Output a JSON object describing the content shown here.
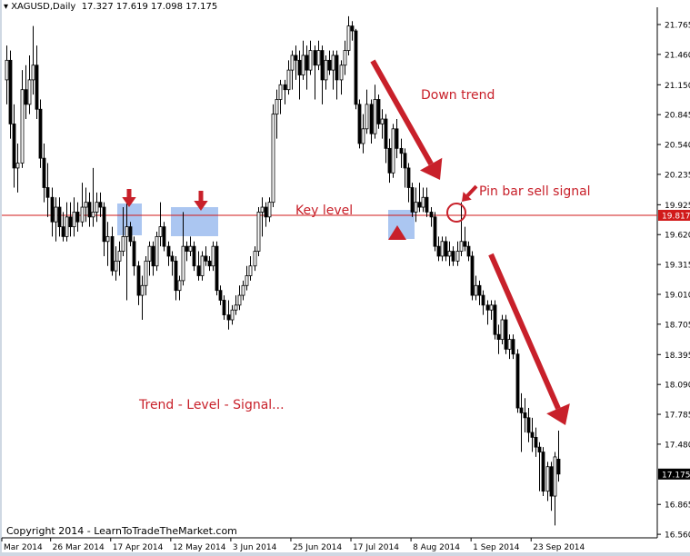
{
  "header": {
    "symbol": "XAGUSD,Daily",
    "ohlc": "17.327 17.619 17.098 17.175"
  },
  "chart_data": {
    "type": "candlestick",
    "symbol": "XAGUSD",
    "timeframe": "Daily",
    "ylim": [
      16.56,
      21.765
    ],
    "y_ticks": [
      21.765,
      21.46,
      21.15,
      20.845,
      20.54,
      20.235,
      19.925,
      19.62,
      19.315,
      19.01,
      18.705,
      18.395,
      18.09,
      17.785,
      17.48,
      16.865,
      16.56
    ],
    "x_tick_labels": [
      "Mar 2014",
      "26 Mar 2014",
      "17 Apr 2014",
      "12 May 2014",
      "3 Jun 2014",
      "25 Jun 2014",
      "17 Jul 2014",
      "8 Aug 2014",
      "1 Sep 2014",
      "23 Sep 2014"
    ],
    "x_tick_bar_index": [
      0,
      13,
      29,
      45,
      61,
      77,
      93,
      109,
      125,
      141
    ],
    "current_price": {
      "value": "17.175",
      "color": "#000000"
    },
    "key_level": {
      "value": "19.817",
      "color": "#d11a1a",
      "label": "Key level"
    },
    "annotations": {
      "down_trend": "Down trend",
      "pin_bar": "Pin bar sell signal",
      "summary": "Trend - Level - Signal...",
      "copyright": "Copyright 2014 - LearnToTradeTheMarket.com"
    },
    "colors": {
      "annotation": "#c8202a",
      "highlight_box": "#8fb3ec",
      "bull_body": "#ffffff",
      "bear_body": "#000000"
    },
    "candles_ohlc": [
      [
        21.2,
        21.55,
        20.95,
        21.4
      ],
      [
        21.4,
        21.5,
        20.6,
        20.75
      ],
      [
        20.75,
        20.95,
        20.1,
        20.3
      ],
      [
        20.3,
        20.55,
        20.05,
        20.35
      ],
      [
        20.35,
        21.3,
        20.3,
        21.1
      ],
      [
        21.1,
        21.35,
        20.8,
        20.95
      ],
      [
        20.95,
        21.45,
        20.85,
        21.2
      ],
      [
        21.2,
        21.75,
        21.05,
        21.35
      ],
      [
        21.35,
        21.55,
        20.8,
        20.9
      ],
      [
        20.9,
        21.0,
        20.3,
        20.4
      ],
      [
        20.4,
        20.55,
        19.95,
        20.1
      ],
      [
        20.1,
        20.35,
        19.8,
        20.0
      ],
      [
        20.0,
        20.1,
        19.6,
        19.75
      ],
      [
        19.75,
        20.0,
        19.55,
        19.9
      ],
      [
        19.9,
        20.0,
        19.6,
        19.7
      ],
      [
        19.7,
        19.85,
        19.55,
        19.6
      ],
      [
        19.6,
        19.95,
        19.55,
        19.8
      ],
      [
        19.8,
        19.95,
        19.6,
        19.7
      ],
      [
        19.7,
        20.0,
        19.6,
        19.85
      ],
      [
        19.85,
        19.95,
        19.65,
        19.75
      ],
      [
        19.75,
        20.15,
        19.7,
        19.9
      ],
      [
        19.9,
        20.1,
        19.75,
        19.95
      ],
      [
        19.95,
        20.05,
        19.7,
        19.8
      ],
      [
        19.8,
        20.3,
        19.7,
        19.85
      ],
      [
        19.85,
        20.05,
        19.75,
        19.95
      ],
      [
        19.95,
        20.05,
        19.8,
        19.9
      ],
      [
        19.9,
        19.95,
        19.4,
        19.55
      ],
      [
        19.55,
        19.75,
        19.3,
        19.6
      ],
      [
        19.6,
        19.7,
        19.2,
        19.25
      ],
      [
        19.25,
        19.5,
        19.15,
        19.35
      ],
      [
        19.35,
        19.55,
        19.2,
        19.45
      ],
      [
        19.45,
        19.9,
        19.4,
        19.6
      ],
      [
        19.6,
        19.95,
        18.95,
        19.7
      ],
      [
        19.7,
        19.75,
        19.5,
        19.55
      ],
      [
        19.55,
        19.6,
        19.2,
        19.3
      ],
      [
        19.3,
        19.35,
        18.9,
        19.0
      ],
      [
        19.0,
        19.2,
        18.75,
        19.1
      ],
      [
        19.1,
        19.4,
        19.0,
        19.35
      ],
      [
        19.35,
        19.55,
        19.2,
        19.5
      ],
      [
        19.5,
        19.55,
        19.2,
        19.3
      ],
      [
        19.3,
        19.65,
        19.25,
        19.6
      ],
      [
        19.6,
        19.95,
        19.5,
        19.7
      ],
      [
        19.7,
        19.75,
        19.45,
        19.5
      ],
      [
        19.5,
        19.55,
        19.3,
        19.4
      ],
      [
        19.4,
        19.45,
        19.2,
        19.35
      ],
      [
        19.35,
        19.4,
        18.95,
        19.05
      ],
      [
        19.05,
        19.2,
        18.95,
        19.15
      ],
      [
        19.15,
        19.85,
        19.1,
        19.5
      ],
      [
        19.5,
        19.55,
        19.35,
        19.45
      ],
      [
        19.45,
        19.6,
        19.4,
        19.5
      ],
      [
        19.5,
        19.55,
        19.25,
        19.3
      ],
      [
        19.3,
        19.45,
        19.15,
        19.2
      ],
      [
        19.2,
        19.45,
        19.15,
        19.4
      ],
      [
        19.4,
        19.5,
        19.3,
        19.35
      ],
      [
        19.35,
        19.4,
        19.25,
        19.3
      ],
      [
        19.3,
        19.55,
        19.25,
        19.5
      ],
      [
        19.5,
        19.55,
        19.0,
        19.05
      ],
      [
        19.05,
        19.1,
        18.9,
        18.95
      ],
      [
        18.95,
        19.0,
        18.75,
        18.8
      ],
      [
        18.8,
        18.95,
        18.65,
        18.75
      ],
      [
        18.75,
        18.9,
        18.7,
        18.85
      ],
      [
        18.85,
        19.0,
        18.8,
        18.9
      ],
      [
        18.9,
        19.1,
        18.85,
        19.0
      ],
      [
        19.0,
        19.15,
        18.95,
        19.1
      ],
      [
        19.1,
        19.3,
        19.05,
        19.2
      ],
      [
        19.2,
        19.4,
        19.15,
        19.3
      ],
      [
        19.3,
        19.5,
        19.25,
        19.45
      ],
      [
        19.45,
        19.9,
        19.4,
        19.85
      ],
      [
        19.85,
        20.0,
        19.6,
        19.9
      ],
      [
        19.9,
        19.95,
        19.7,
        19.8
      ],
      [
        19.8,
        20.0,
        19.75,
        19.95
      ],
      [
        19.95,
        20.95,
        19.9,
        20.85
      ],
      [
        20.85,
        21.1,
        20.6,
        21.0
      ],
      [
        21.0,
        21.2,
        20.85,
        21.15
      ],
      [
        21.15,
        21.2,
        20.95,
        21.1
      ],
      [
        21.1,
        21.4,
        21.05,
        21.3
      ],
      [
        21.3,
        21.5,
        21.1,
        21.45
      ],
      [
        21.45,
        21.55,
        21.2,
        21.4
      ],
      [
        21.4,
        21.5,
        21.0,
        21.25
      ],
      [
        21.25,
        21.6,
        21.2,
        21.45
      ],
      [
        21.45,
        21.55,
        21.1,
        21.3
      ],
      [
        21.3,
        21.6,
        21.25,
        21.5
      ],
      [
        21.5,
        21.55,
        21.0,
        21.35
      ],
      [
        21.35,
        21.6,
        21.3,
        21.5
      ],
      [
        21.5,
        21.55,
        20.95,
        21.2
      ],
      [
        21.2,
        21.45,
        21.1,
        21.4
      ],
      [
        21.4,
        21.5,
        21.25,
        21.3
      ],
      [
        21.3,
        21.5,
        21.1,
        21.45
      ],
      [
        21.45,
        21.5,
        21.0,
        21.2
      ],
      [
        21.2,
        21.4,
        21.05,
        21.35
      ],
      [
        21.35,
        21.6,
        21.25,
        21.5
      ],
      [
        21.5,
        21.85,
        21.45,
        21.75
      ],
      [
        21.75,
        21.8,
        21.6,
        21.7
      ],
      [
        21.7,
        21.72,
        20.9,
        20.95
      ],
      [
        20.95,
        21.0,
        20.5,
        20.55
      ],
      [
        20.55,
        20.85,
        20.45,
        20.7
      ],
      [
        20.7,
        21.1,
        20.65,
        20.95
      ],
      [
        20.95,
        21.0,
        20.55,
        20.65
      ],
      [
        20.65,
        21.15,
        20.6,
        21.0
      ],
      [
        21.0,
        21.05,
        20.7,
        20.75
      ],
      [
        20.75,
        20.9,
        20.6,
        20.8
      ],
      [
        20.8,
        20.85,
        20.35,
        20.5
      ],
      [
        20.5,
        20.6,
        20.15,
        20.25
      ],
      [
        20.25,
        20.75,
        20.2,
        20.7
      ],
      [
        20.7,
        20.8,
        20.4,
        20.5
      ],
      [
        20.5,
        20.6,
        20.3,
        20.45
      ],
      [
        20.45,
        20.5,
        20.1,
        20.3
      ],
      [
        20.3,
        20.35,
        19.95,
        20.1
      ],
      [
        20.1,
        20.15,
        19.8,
        19.85
      ],
      [
        19.85,
        20.1,
        19.75,
        19.95
      ],
      [
        19.95,
        20.15,
        19.85,
        19.9
      ],
      [
        19.9,
        20.1,
        19.85,
        20.0
      ],
      [
        20.0,
        20.1,
        19.8,
        19.85
      ],
      [
        19.85,
        19.9,
        19.7,
        19.8
      ],
      [
        19.8,
        19.85,
        19.45,
        19.5
      ],
      [
        19.5,
        19.6,
        19.35,
        19.4
      ],
      [
        19.4,
        19.6,
        19.35,
        19.55
      ],
      [
        19.55,
        19.6,
        19.35,
        19.4
      ],
      [
        19.4,
        19.55,
        19.3,
        19.45
      ],
      [
        19.45,
        19.5,
        19.3,
        19.35
      ],
      [
        19.35,
        19.55,
        19.3,
        19.45
      ],
      [
        19.45,
        19.95,
        19.4,
        19.55
      ],
      [
        19.55,
        19.7,
        19.45,
        19.5
      ],
      [
        19.5,
        19.55,
        19.35,
        19.4
      ],
      [
        19.4,
        19.45,
        18.95,
        19.0
      ],
      [
        19.0,
        19.2,
        18.95,
        19.1
      ],
      [
        19.1,
        19.15,
        18.9,
        19.0
      ],
      [
        19.0,
        19.05,
        18.8,
        18.9
      ],
      [
        18.9,
        18.95,
        18.7,
        18.85
      ],
      [
        18.85,
        18.95,
        18.75,
        18.9
      ],
      [
        18.9,
        18.95,
        18.55,
        18.6
      ],
      [
        18.6,
        18.7,
        18.4,
        18.55
      ],
      [
        18.55,
        18.8,
        18.5,
        18.75
      ],
      [
        18.75,
        18.8,
        18.4,
        18.45
      ],
      [
        18.45,
        18.6,
        18.35,
        18.55
      ],
      [
        18.55,
        18.6,
        18.35,
        18.4
      ],
      [
        18.4,
        18.45,
        17.8,
        17.85
      ],
      [
        17.85,
        18.0,
        17.4,
        17.8
      ],
      [
        17.8,
        17.95,
        17.6,
        17.75
      ],
      [
        17.75,
        17.85,
        17.5,
        17.6
      ],
      [
        17.6,
        17.75,
        17.4,
        17.55
      ],
      [
        17.55,
        17.65,
        17.35,
        17.45
      ],
      [
        17.45,
        17.5,
        17.0,
        17.4
      ],
      [
        17.4,
        17.45,
        16.95,
        17.0
      ],
      [
        17.0,
        17.3,
        16.9,
        17.25
      ],
      [
        17.25,
        17.3,
        16.8,
        16.95
      ],
      [
        16.95,
        17.4,
        16.65,
        17.35
      ],
      [
        17.327,
        17.619,
        17.098,
        17.175
      ]
    ]
  }
}
